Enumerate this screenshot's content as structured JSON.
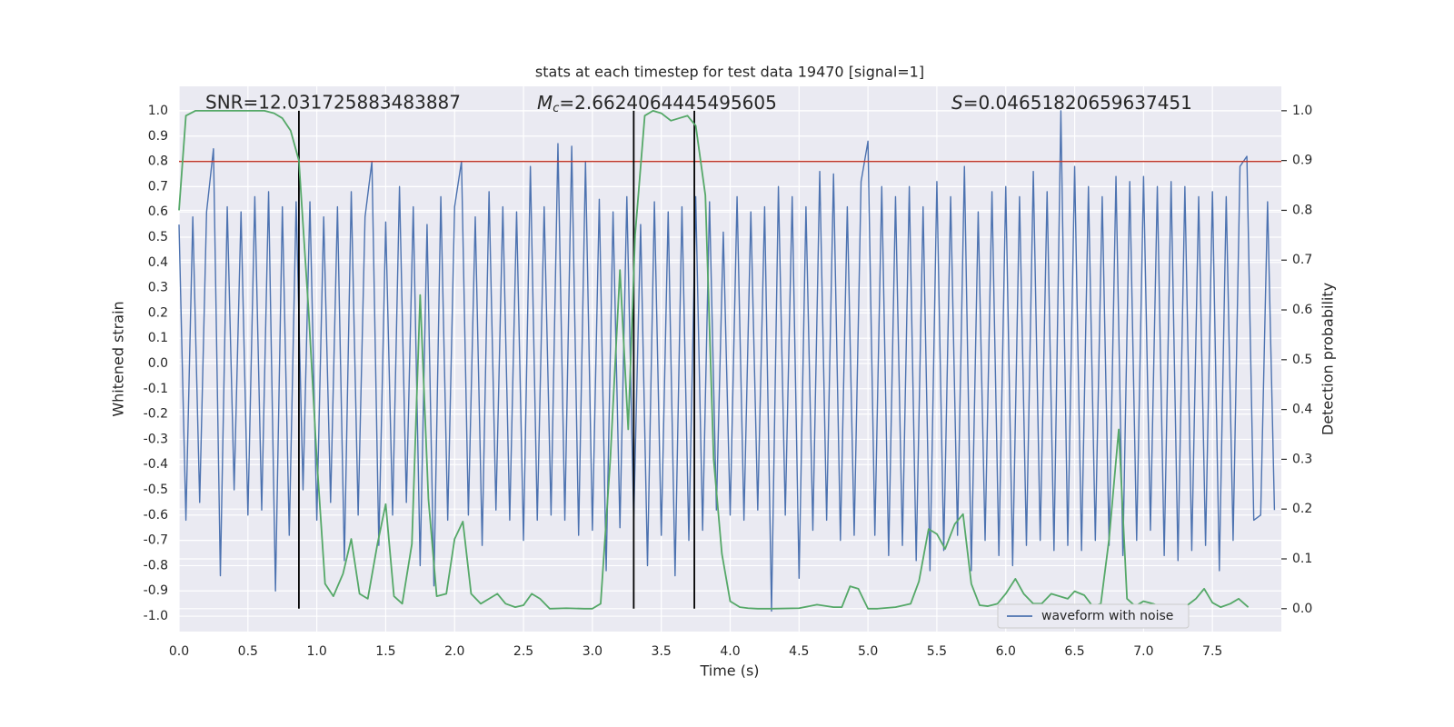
{
  "chart_data": {
    "type": "line",
    "title": "stats at each timestep for test data 19470 [signal=1]",
    "xlabel": "Time (s)",
    "ylabel": "Whitened strain",
    "y2label": "Detection probability",
    "annotations": [
      {
        "text": "SNR=12.031725883483887"
      },
      {
        "symbol": "M",
        "subscript": "c",
        "text": "=2.6624064445495605"
      },
      {
        "symbol": "S",
        "text": "=0.04651820659637451"
      }
    ],
    "grid": true,
    "legend_loc": "lower right",
    "xlim": [
      0,
      8.0
    ],
    "ylim": [
      -1.061,
      1.097
    ],
    "y2lim": [
      -0.046,
      1.049
    ],
    "xticks": [
      {
        "value": 0,
        "label": "0.0"
      },
      0.5,
      {
        "value": 1,
        "label": "1.0"
      },
      1.5,
      {
        "value": 2,
        "label": "2.0"
      },
      2.5,
      {
        "value": 3,
        "label": "3.0"
      },
      3.5,
      {
        "value": 4,
        "label": "4.0"
      },
      4.5,
      {
        "value": 5,
        "label": "5.0"
      },
      5.5,
      {
        "value": 6,
        "label": "6.0"
      },
      6.5,
      {
        "value": 7,
        "label": "7.0"
      },
      7.5
    ],
    "yticks": [
      {
        "value": 1,
        "label": "1.0"
      },
      0.9,
      0.8,
      0.7,
      0.6,
      0.5,
      0.4,
      0.3,
      0.2,
      0.1,
      {
        "value": 0,
        "label": "0.0"
      },
      -0.1,
      -0.2,
      -0.3,
      -0.4,
      -0.5,
      -0.6,
      -0.7,
      -0.8,
      -0.9,
      {
        "value": -1,
        "label": "-1.0"
      }
    ],
    "y2ticks": [
      {
        "value": 0,
        "label": "0.0"
      },
      0.1,
      0.2,
      0.3,
      0.4,
      0.5,
      0.6,
      0.7,
      0.8,
      0.9,
      {
        "value": 1,
        "label": "1.0"
      }
    ],
    "series": [
      {
        "name": "waveform with noise",
        "color": "#4c72b0",
        "x": [
          0,
          0.05,
          0.1,
          0.15,
          0.2,
          0.25,
          0.3,
          0.35,
          0.4,
          0.45,
          0.5,
          0.55,
          0.6,
          0.65,
          0.7,
          0.75,
          0.8,
          0.85,
          0.9,
          0.95,
          1,
          1.05,
          1.1,
          1.15,
          1.2,
          1.25,
          1.3,
          1.35,
          1.4,
          1.45,
          1.5,
          1.55,
          1.6,
          1.65,
          1.7,
          1.75,
          1.8,
          1.85,
          1.9,
          1.95,
          2,
          2.05,
          2.1,
          2.15,
          2.2,
          2.25,
          2.3,
          2.35,
          2.4,
          2.45,
          2.5,
          2.55,
          2.6,
          2.65,
          2.7,
          2.75,
          2.8,
          2.85,
          2.9,
          2.95,
          3,
          3.05,
          3.1,
          3.15,
          3.2,
          3.25,
          3.3,
          3.35,
          3.4,
          3.45,
          3.5,
          3.55,
          3.6,
          3.65,
          3.7,
          3.75,
          3.8,
          3.85,
          3.9,
          3.95,
          4,
          4.05,
          4.1,
          4.15,
          4.2,
          4.25,
          4.3,
          4.35,
          4.4,
          4.45,
          4.5,
          4.55,
          4.6,
          4.65,
          4.7,
          4.75,
          4.8,
          4.85,
          4.9,
          4.95,
          5,
          5.05,
          5.1,
          5.15,
          5.2,
          5.25,
          5.3,
          5.35,
          5.4,
          5.45,
          5.5,
          5.55,
          5.6,
          5.65,
          5.7,
          5.75,
          5.8,
          5.85,
          5.9,
          5.95,
          6,
          6.05,
          6.1,
          6.15,
          6.2,
          6.25,
          6.3,
          6.35,
          6.4,
          6.45,
          6.5,
          6.55,
          6.6,
          6.65,
          6.7,
          6.75,
          6.8,
          6.85,
          6.9,
          6.95,
          7,
          7.05,
          7.1,
          7.15,
          7.2,
          7.25,
          7.3,
          7.35,
          7.4,
          7.45,
          7.5,
          7.55,
          7.6,
          7.65,
          7.7,
          7.75,
          7.8,
          7.85,
          7.9,
          7.95
        ],
        "values": [
          0.55,
          -0.62,
          0.58,
          -0.55,
          0.6,
          0.85,
          -0.84,
          0.62,
          -0.5,
          0.6,
          -0.6,
          0.66,
          -0.58,
          0.68,
          -0.9,
          0.62,
          -0.68,
          0.64,
          -0.5,
          0.64,
          -0.62,
          0.58,
          -0.55,
          0.62,
          -0.78,
          0.68,
          -0.6,
          0.58,
          0.8,
          -0.72,
          0.56,
          -0.6,
          0.7,
          -0.55,
          0.62,
          -0.8,
          0.55,
          -0.88,
          0.66,
          -0.62,
          0.62,
          0.8,
          -0.6,
          0.58,
          -0.72,
          0.68,
          -0.58,
          0.62,
          -0.62,
          0.6,
          -0.7,
          0.78,
          -0.62,
          0.62,
          -0.6,
          0.87,
          -0.62,
          0.86,
          -0.68,
          0.8,
          -0.66,
          0.65,
          -0.82,
          0.6,
          -0.65,
          0.66,
          -0.62,
          0.55,
          -0.8,
          0.64,
          -0.68,
          0.6,
          -0.84,
          0.62,
          -0.7,
          0.66,
          -0.66,
          0.64,
          -0.58,
          0.52,
          -0.6,
          0.66,
          -0.62,
          0.6,
          -0.58,
          0.62,
          -0.98,
          0.7,
          -0.6,
          0.66,
          -0.85,
          0.62,
          -0.66,
          0.76,
          -0.62,
          0.75,
          -0.7,
          0.62,
          -0.68,
          0.72,
          0.88,
          -0.68,
          0.7,
          -0.76,
          0.66,
          -0.72,
          0.7,
          -0.78,
          0.62,
          -0.82,
          0.72,
          -0.74,
          0.66,
          -0.68,
          0.78,
          -0.82,
          0.6,
          -0.7,
          0.68,
          -0.76,
          0.7,
          -0.8,
          0.66,
          -0.72,
          0.76,
          -0.7,
          0.68,
          -0.74,
          1.0,
          -0.72,
          0.78,
          -0.74,
          0.7,
          -0.7,
          0.66,
          -0.72,
          0.74,
          -0.76,
          0.72,
          -0.7,
          0.74,
          -0.66,
          0.7,
          -0.76,
          0.72,
          -0.78,
          0.7,
          -0.74,
          0.66,
          -0.72,
          0.68,
          -0.82,
          0.66,
          -0.7,
          0.78,
          0.82,
          -0.62,
          -0.6,
          0.64,
          -0.58
        ]
      },
      {
        "color": "#55a868",
        "axis": "y2",
        "x": [
          0,
          0.05,
          0.12,
          0.25,
          0.38,
          0.5,
          0.62,
          0.69,
          0.75,
          0.81,
          0.87,
          0.94,
          1,
          1.06,
          1.12,
          1.19,
          1.25,
          1.31,
          1.37,
          1.44,
          1.5,
          1.56,
          1.62,
          1.69,
          1.75,
          1.81,
          1.87,
          1.94,
          2,
          2.06,
          2.12,
          2.19,
          2.25,
          2.31,
          2.37,
          2.44,
          2.5,
          2.56,
          2.62,
          2.69,
          2.81,
          2.94,
          3,
          3.06,
          3.13,
          3.2,
          3.26,
          3.31,
          3.38,
          3.44,
          3.5,
          3.57,
          3.63,
          3.69,
          3.75,
          3.82,
          3.88,
          3.94,
          4,
          4.07,
          4.13,
          4.2,
          4.3,
          4.5,
          4.63,
          4.75,
          4.81,
          4.87,
          4.93,
          5,
          5.07,
          5.2,
          5.31,
          5.37,
          5.44,
          5.5,
          5.56,
          5.63,
          5.69,
          5.75,
          5.81,
          5.87,
          5.94,
          6,
          6.07,
          6.13,
          6.2,
          6.26,
          6.33,
          6.45,
          6.5,
          6.57,
          6.63,
          6.69,
          6.75,
          6.82,
          6.88,
          6.94,
          7,
          7.07,
          7.13,
          7.2,
          7.3,
          7.38,
          7.44,
          7.5,
          7.56,
          7.63,
          7.69,
          7.76
        ],
        "values": [
          0.8,
          0.99,
          1.0,
          1.0,
          1.0,
          1.0,
          1.0,
          0.995,
          0.985,
          0.96,
          0.9,
          0.6,
          0.3,
          0.05,
          0.025,
          0.07,
          0.14,
          0.03,
          0.02,
          0.13,
          0.21,
          0.025,
          0.01,
          0.13,
          0.63,
          0.22,
          0.025,
          0.03,
          0.14,
          0.175,
          0.03,
          0.01,
          0.02,
          0.03,
          0.01,
          0.003,
          0.007,
          0.03,
          0.02,
          0.0,
          0.001,
          0.0,
          0.0,
          0.01,
          0.3,
          0.68,
          0.36,
          0.75,
          0.99,
          1.0,
          0.995,
          0.98,
          0.985,
          0.99,
          0.97,
          0.83,
          0.3,
          0.11,
          0.015,
          0.003,
          0.001,
          0.0,
          0.0,
          0.001,
          0.008,
          0.003,
          0.003,
          0.045,
          0.04,
          0.0,
          0.0,
          0.003,
          0.01,
          0.055,
          0.16,
          0.15,
          0.12,
          0.17,
          0.19,
          0.05,
          0.007,
          0.005,
          0.01,
          0.03,
          0.06,
          0.03,
          0.01,
          0.01,
          0.03,
          0.02,
          0.035,
          0.027,
          0.005,
          0.01,
          0.14,
          0.36,
          0.02,
          0.005,
          0.015,
          0.01,
          0.003,
          0.001,
          0.003,
          0.02,
          0.04,
          0.012,
          0.003,
          0.01,
          0.02,
          0.003
        ]
      }
    ],
    "threshold": {
      "value": 0.8,
      "color": "#c0392b"
    },
    "vlines": {
      "x": [
        0.87,
        3.3,
        3.74
      ],
      "y2range": [
        0,
        1
      ],
      "color": "#000000"
    }
  }
}
